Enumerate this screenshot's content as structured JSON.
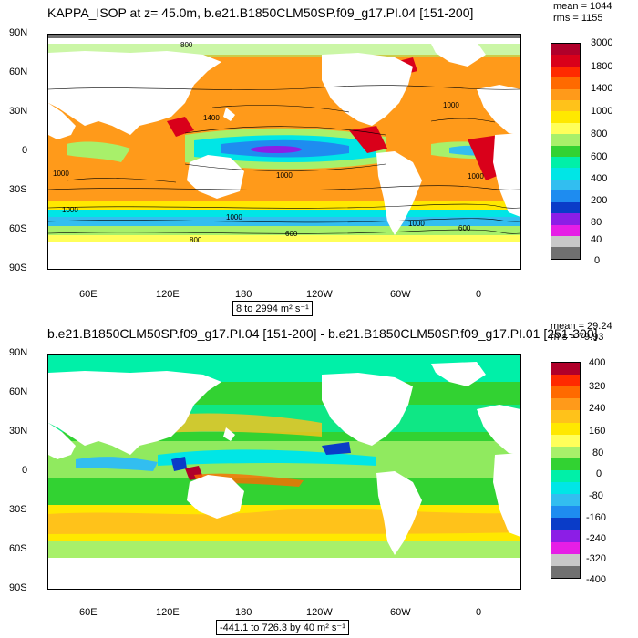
{
  "top_panel": {
    "title": "KAPPA_ISOP at z=  45.0m, b.e21.B1850CLM50SP.f09_g17.PI.04 [151-200]",
    "mean_text": "mean = 1044",
    "rms_text": "rms = 1155",
    "range_text": "8 to 2994 m² s⁻¹",
    "colorbar_labels": [
      "3000",
      "1800",
      "1400",
      "1000",
      "800",
      "600",
      "400",
      "200",
      "80",
      "40",
      "0"
    ],
    "colorbar_colors": [
      "#b0002a",
      "#d9001a",
      "#ff2a00",
      "#ff6a00",
      "#ff9a1a",
      "#ffc21a",
      "#ffe800",
      "#ffff5a",
      "#a8f06a",
      "#32d232",
      "#00f0a8",
      "#00e6e6",
      "#32bef0",
      "#1e8cf0",
      "#0a3cc8",
      "#8c1ee6",
      "#e61ee6",
      "#c8c8c8",
      "#707070"
    ],
    "contour_labels": [
      "800",
      "1400",
      "1000",
      "1000",
      "1000",
      "1000",
      "1000",
      "1000",
      "600",
      "1000",
      "600",
      "800"
    ]
  },
  "bottom_panel": {
    "title": "b.e21.B1850CLM50SP.f09_g17.PI.04 [151-200] - b.e21.B1850CLM50SP.f09_g17.PI.01 [251-300]",
    "mean_text": "mean = 29.24",
    "rms_text": "rms = 79.93",
    "range_text": "-441.1 to 726.3 by 40 m² s⁻¹",
    "colorbar_labels": [
      "400",
      "320",
      "240",
      "160",
      "80",
      "0",
      "-80",
      "-160",
      "-240",
      "-320",
      "-400"
    ],
    "colorbar_colors": [
      "#b0002a",
      "#ff2a00",
      "#ff6a00",
      "#ff9a1a",
      "#ffc21a",
      "#ffe800",
      "#ffff5a",
      "#a8f06a",
      "#32d232",
      "#00f0a8",
      "#00e6e6",
      "#32bef0",
      "#1e8cf0",
      "#0a3cc8",
      "#8c1ee6",
      "#e61ee6",
      "#c8c8c8",
      "#707070"
    ]
  },
  "axes": {
    "lat_labels": [
      "90N",
      "60N",
      "30N",
      "0",
      "30S",
      "60S",
      "90S"
    ],
    "lon_labels": [
      "60E",
      "120E",
      "180",
      "120W",
      "60W",
      "0"
    ]
  },
  "palette": {
    "land": "#ffffff",
    "top_ocean_base": "#ff9a1a",
    "bottom_ocean_base": "#32d232"
  }
}
